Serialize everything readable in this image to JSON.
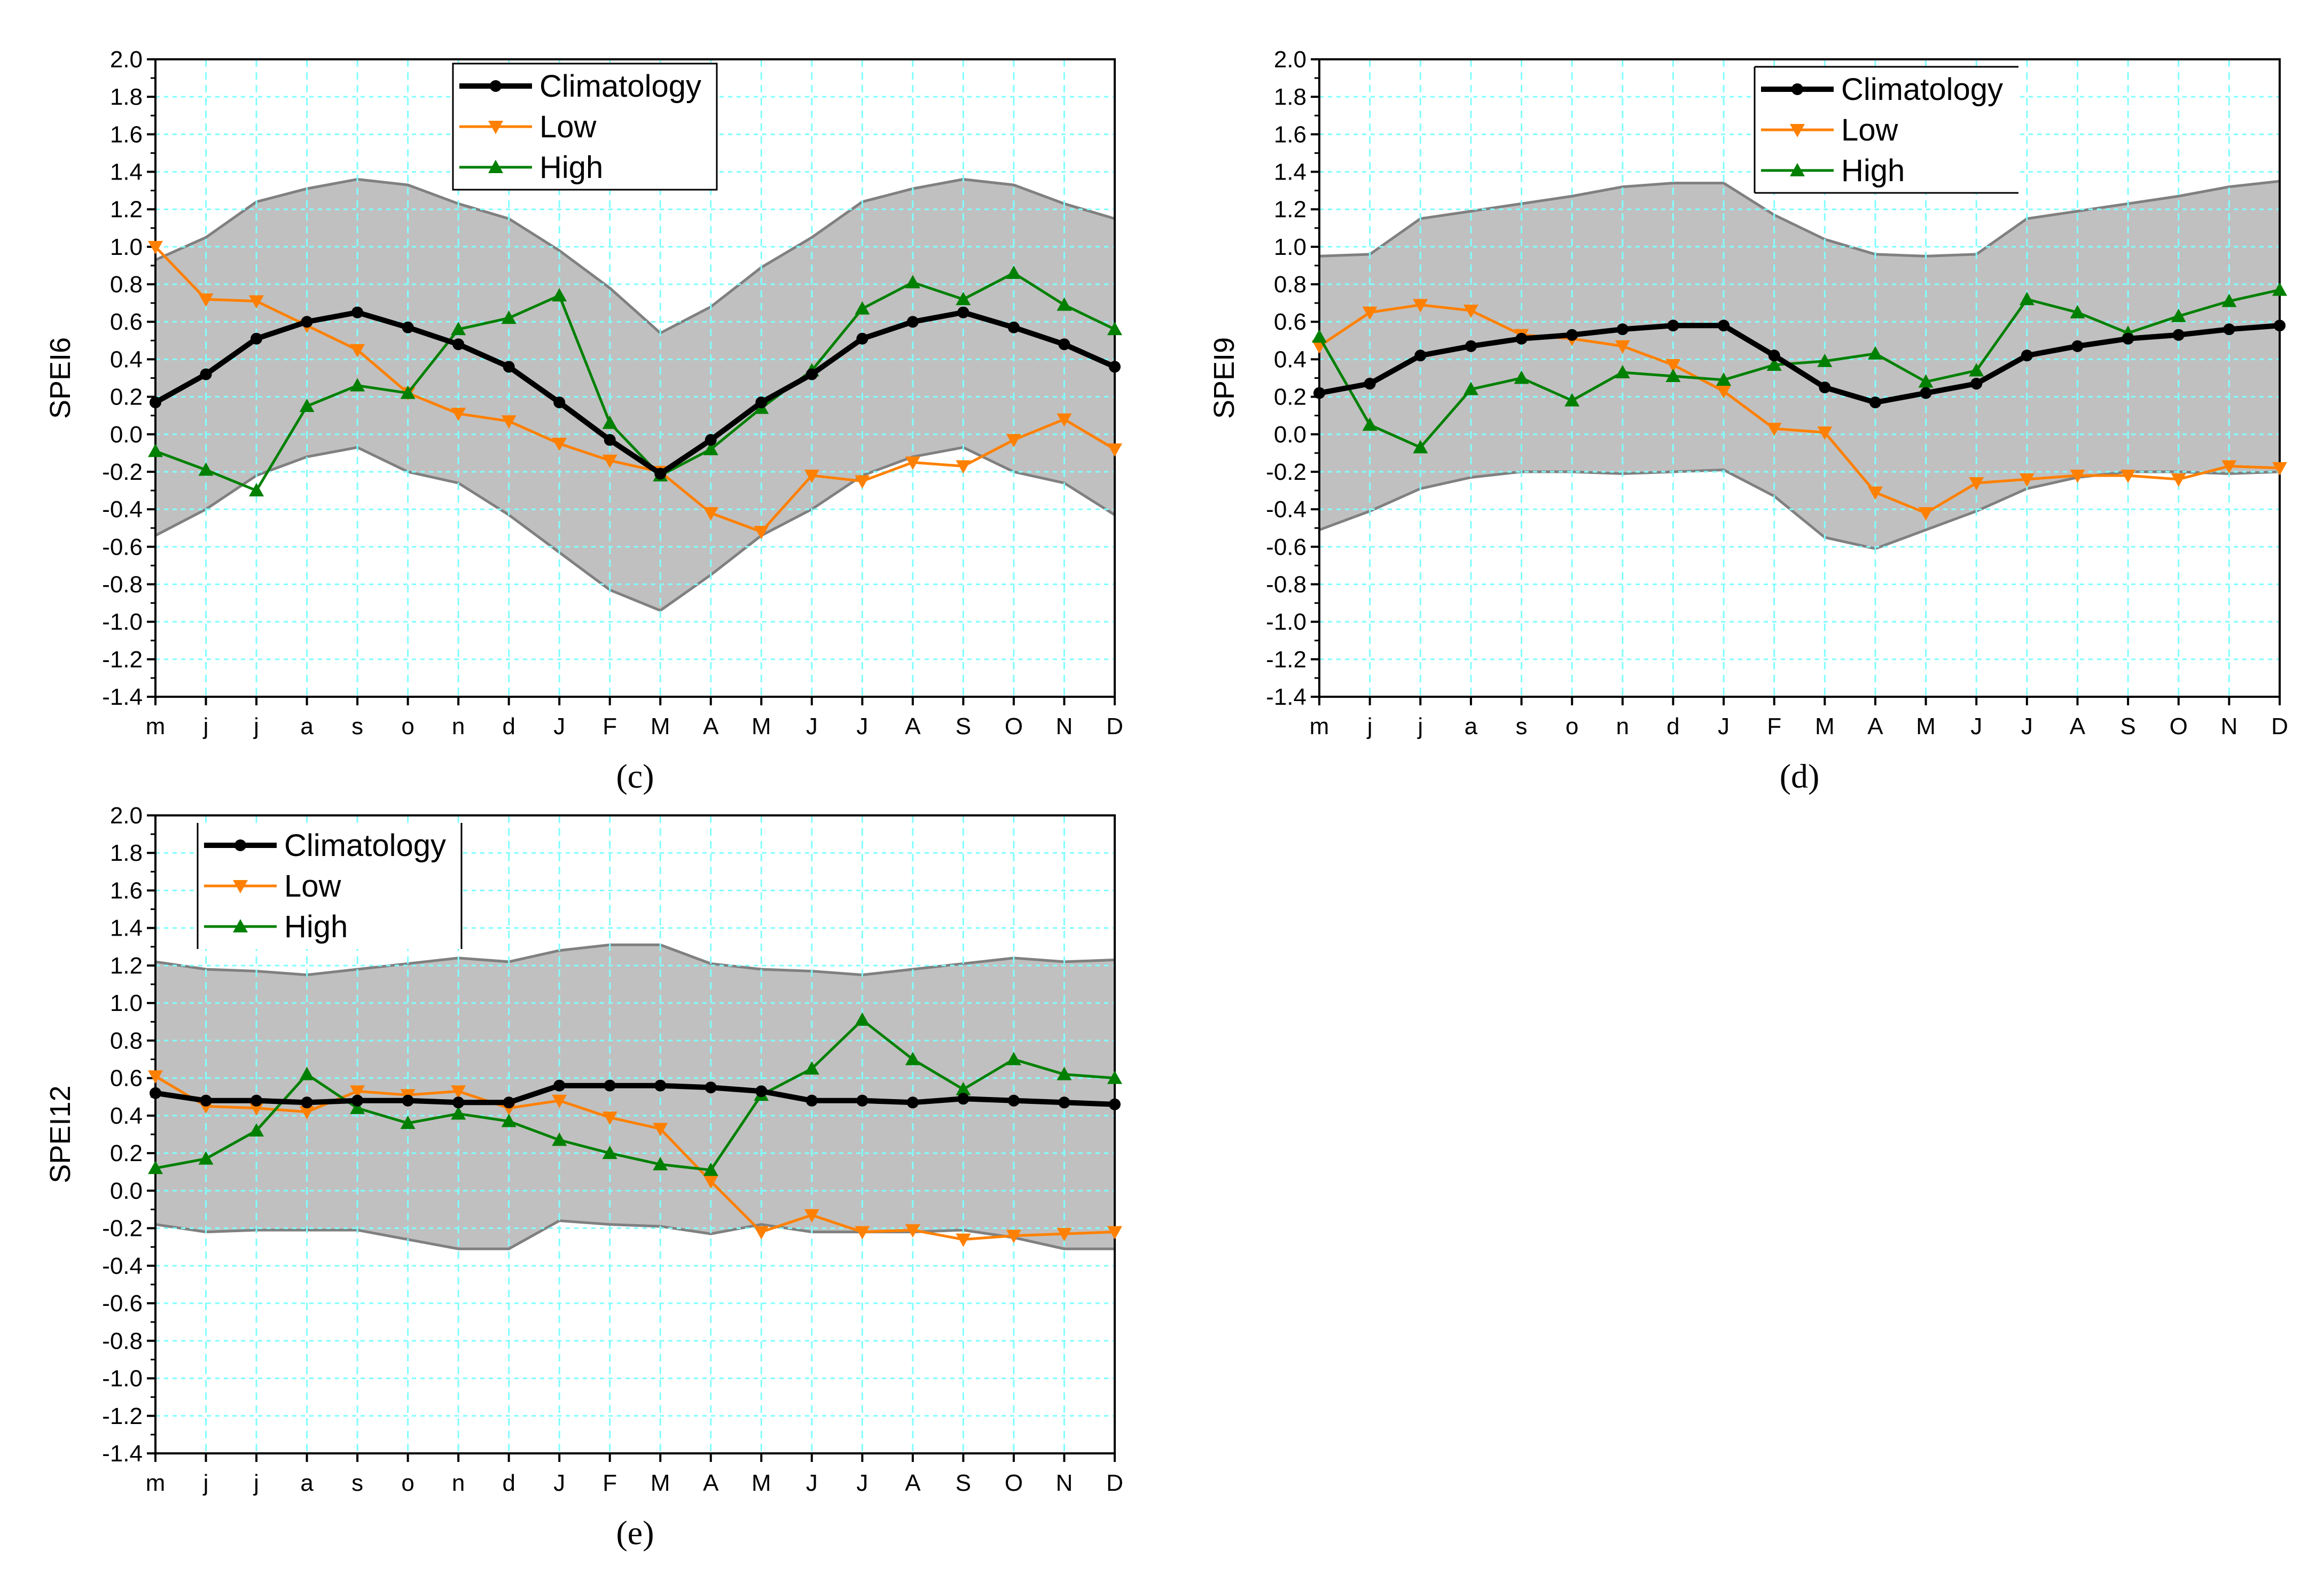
{
  "chart_data": [
    {
      "type": "line",
      "panel_label": "(c)",
      "ylabel": "SPEI6",
      "xlabel": "",
      "ylim": [
        -1.4,
        2.0
      ],
      "yticks": [
        "2.0",
        "1.8",
        "1.6",
        "1.4",
        "1.2",
        "1.0",
        "0.8",
        "0.6",
        "0.4",
        "0.2",
        "0.0",
        "-0.2",
        "-0.4",
        "-0.6",
        "-0.8",
        "-1.0",
        "-1.2",
        "-1.4"
      ],
      "categories": [
        "m",
        "j",
        "j",
        "a",
        "s",
        "o",
        "n",
        "d",
        "J",
        "F",
        "M",
        "A",
        "M",
        "J",
        "J",
        "A",
        "S",
        "O",
        "N",
        "D"
      ],
      "grid": true,
      "legend_position": "top-center",
      "band": {
        "upper": [
          0.93,
          1.05,
          1.24,
          1.31,
          1.36,
          1.33,
          1.23,
          1.15,
          0.98,
          0.78,
          0.54,
          0.68,
          0.89,
          1.05,
          1.24,
          1.31,
          1.36,
          1.33,
          1.23,
          1.15
        ],
        "lower": [
          -0.54,
          -0.4,
          -0.22,
          -0.12,
          -0.07,
          -0.2,
          -0.26,
          -0.43,
          -0.63,
          -0.83,
          -0.94,
          -0.75,
          -0.54,
          -0.4,
          -0.22,
          -0.12,
          -0.07,
          -0.2,
          -0.26,
          -0.43
        ]
      },
      "series": [
        {
          "name": "Climatology",
          "values": [
            0.17,
            0.32,
            0.51,
            0.6,
            0.65,
            0.57,
            0.48,
            0.36,
            0.17,
            -0.03,
            -0.21,
            -0.03,
            0.17,
            0.32,
            0.51,
            0.6,
            0.65,
            0.57,
            0.48,
            0.36
          ]
        },
        {
          "name": "Low",
          "values": [
            1.0,
            0.72,
            0.71,
            0.58,
            0.45,
            0.22,
            0.11,
            0.07,
            -0.05,
            -0.14,
            -0.2,
            -0.42,
            -0.52,
            -0.22,
            -0.25,
            -0.15,
            -0.17,
            -0.03,
            0.08,
            -0.08
          ]
        },
        {
          "name": "High",
          "values": [
            -0.09,
            -0.19,
            -0.3,
            0.15,
            0.26,
            0.22,
            0.56,
            0.62,
            0.74,
            0.06,
            -0.22,
            -0.08,
            0.14,
            0.34,
            0.67,
            0.81,
            0.72,
            0.86,
            0.69,
            0.56
          ]
        }
      ]
    },
    {
      "type": "line",
      "panel_label": "(d)",
      "ylabel": "SPEI9",
      "xlabel": "",
      "ylim": [
        -1.4,
        2.0
      ],
      "yticks": [
        "2.0",
        "1.8",
        "1.6",
        "1.4",
        "1.2",
        "1.0",
        "0.8",
        "0.6",
        "0.4",
        "0.2",
        "0.0",
        "-0.2",
        "-0.4",
        "-0.6",
        "-0.8",
        "-1.0",
        "-1.2",
        "-1.4"
      ],
      "categories": [
        "m",
        "j",
        "j",
        "a",
        "s",
        "o",
        "n",
        "d",
        "J",
        "F",
        "M",
        "A",
        "M",
        "J",
        "J",
        "A",
        "S",
        "O",
        "N",
        "D"
      ],
      "grid": true,
      "legend_position": "top-center",
      "band": {
        "upper": [
          0.95,
          0.96,
          1.15,
          1.19,
          1.23,
          1.27,
          1.32,
          1.34,
          1.34,
          1.17,
          1.04,
          0.96,
          0.95,
          0.96,
          1.15,
          1.19,
          1.23,
          1.27,
          1.32,
          1.35
        ],
        "lower": [
          -0.51,
          -0.41,
          -0.29,
          -0.23,
          -0.2,
          -0.2,
          -0.21,
          -0.2,
          -0.19,
          -0.33,
          -0.55,
          -0.61,
          -0.51,
          -0.41,
          -0.29,
          -0.23,
          -0.2,
          -0.2,
          -0.21,
          -0.2
        ]
      },
      "series": [
        {
          "name": "Climatology",
          "values": [
            0.22,
            0.27,
            0.42,
            0.47,
            0.51,
            0.53,
            0.56,
            0.58,
            0.58,
            0.42,
            0.25,
            0.17,
            0.22,
            0.27,
            0.42,
            0.47,
            0.51,
            0.53,
            0.56,
            0.58
          ]
        },
        {
          "name": "Low",
          "values": [
            0.47,
            0.65,
            0.69,
            0.66,
            0.53,
            0.51,
            0.47,
            0.37,
            0.23,
            0.03,
            0.01,
            -0.31,
            -0.42,
            -0.26,
            -0.24,
            -0.22,
            -0.22,
            -0.24,
            -0.17,
            -0.18
          ]
        },
        {
          "name": "High",
          "values": [
            0.52,
            0.05,
            -0.07,
            0.24,
            0.3,
            0.18,
            0.33,
            0.31,
            0.29,
            0.37,
            0.39,
            0.43,
            0.28,
            0.34,
            0.72,
            0.65,
            0.54,
            0.63,
            0.71,
            0.77
          ]
        }
      ]
    },
    {
      "type": "line",
      "panel_label": "(e)",
      "ylabel": "SPEI12",
      "xlabel": "",
      "ylim": [
        -1.4,
        2.0
      ],
      "yticks": [
        "2.0",
        "1.8",
        "1.6",
        "1.4",
        "1.2",
        "1.0",
        "0.8",
        "0.6",
        "0.4",
        "0.2",
        "0.0",
        "-0.2",
        "-0.4",
        "-0.6",
        "-0.8",
        "-1.0",
        "-1.2",
        "-1.4"
      ],
      "categories": [
        "m",
        "j",
        "j",
        "a",
        "s",
        "o",
        "n",
        "d",
        "J",
        "F",
        "M",
        "A",
        "M",
        "J",
        "J",
        "A",
        "S",
        "O",
        "N",
        "D"
      ],
      "grid": true,
      "legend_position": "top-left",
      "band": {
        "upper": [
          1.22,
          1.18,
          1.17,
          1.15,
          1.18,
          1.21,
          1.24,
          1.22,
          1.28,
          1.31,
          1.31,
          1.21,
          1.18,
          1.17,
          1.15,
          1.18,
          1.21,
          1.24,
          1.22,
          1.23
        ],
        "lower": [
          -0.18,
          -0.22,
          -0.21,
          -0.21,
          -0.21,
          -0.26,
          -0.31,
          -0.31,
          -0.16,
          -0.18,
          -0.19,
          -0.23,
          -0.18,
          -0.22,
          -0.22,
          -0.22,
          -0.21,
          -0.25,
          -0.31,
          -0.31
        ]
      },
      "series": [
        {
          "name": "Climatology",
          "values": [
            0.52,
            0.48,
            0.48,
            0.47,
            0.48,
            0.48,
            0.47,
            0.47,
            0.56,
            0.56,
            0.56,
            0.55,
            0.53,
            0.48,
            0.48,
            0.47,
            0.49,
            0.48,
            0.47,
            0.46
          ]
        },
        {
          "name": "Low",
          "values": [
            0.61,
            0.45,
            0.44,
            0.42,
            0.53,
            0.51,
            0.53,
            0.44,
            0.48,
            0.39,
            0.33,
            0.05,
            -0.22,
            -0.13,
            -0.22,
            -0.21,
            -0.26,
            -0.24,
            -0.23,
            -0.22
          ]
        },
        {
          "name": "High",
          "values": [
            0.12,
            0.17,
            0.32,
            0.62,
            0.44,
            0.36,
            0.41,
            0.37,
            0.27,
            0.2,
            0.14,
            0.11,
            0.51,
            0.65,
            0.91,
            0.7,
            0.54,
            0.7,
            0.62,
            0.6
          ]
        }
      ]
    }
  ],
  "colors": {
    "climatology": "#000000",
    "low": "#ff8000",
    "high": "#008000",
    "band_fill": "#c0c0c0",
    "band_edge": "#808080",
    "grid": "#80ffff"
  }
}
